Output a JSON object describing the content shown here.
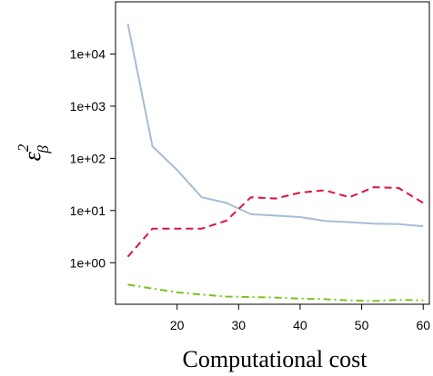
{
  "chart_data": {
    "type": "line",
    "title": "",
    "xlabel": "Computational cost",
    "ylabel": {
      "base": "ε",
      "sup": "2",
      "sub": "β"
    },
    "y_scale": "log10",
    "xlim": [
      10,
      61
    ],
    "ylim": [
      0.16,
      100000
    ],
    "grid": false,
    "x_ticks": [
      20,
      30,
      40,
      50,
      60
    ],
    "x_tick_labels": [
      "20",
      "30",
      "40",
      "50",
      "60"
    ],
    "y_ticks": [
      1,
      10,
      100,
      1000,
      10000
    ],
    "y_tick_labels": [
      "1e+00",
      "1e+01",
      "1e+02",
      "1e+03",
      "1e+04"
    ],
    "series": [
      {
        "color": "#a9bcd4",
        "dash": "solid",
        "x": [
          12,
          16,
          20,
          24,
          28,
          32,
          36,
          40,
          44,
          48,
          52,
          56,
          60
        ],
        "y": [
          38000,
          170,
          60,
          18,
          14,
          8.5,
          8,
          7.5,
          6.3,
          6,
          5.6,
          5.5,
          5
        ]
      },
      {
        "color": "#dc143c",
        "dash": "dashed",
        "x": [
          12,
          16,
          20,
          24,
          28,
          32,
          36,
          40,
          44,
          48,
          52,
          56,
          60
        ],
        "y": [
          1.3,
          4.5,
          4.5,
          4.5,
          6.4,
          18,
          17,
          22,
          24.5,
          18,
          28,
          27,
          14
        ]
      },
      {
        "color": "#7cc21e",
        "dash": "dashdot",
        "x": [
          12,
          16,
          20,
          24,
          28,
          32,
          36,
          40,
          44,
          48,
          52,
          56,
          60
        ],
        "y": [
          0.38,
          0.32,
          0.27,
          0.245,
          0.225,
          0.22,
          0.215,
          0.205,
          0.2,
          0.19,
          0.185,
          0.195,
          0.19
        ]
      }
    ]
  }
}
